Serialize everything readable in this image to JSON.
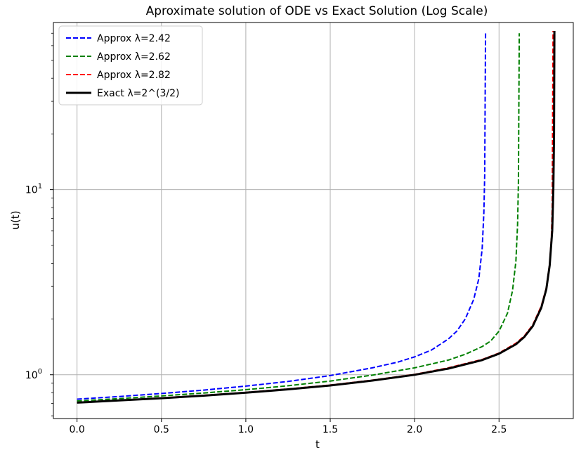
{
  "chart_data": {
    "type": "line",
    "title": "Aproximate solution of ODE vs Exact Solution (Log Scale)",
    "xlabel": "t",
    "ylabel": "u(t)",
    "yscale": "log",
    "xlim": [
      -0.14,
      2.94
    ],
    "ylim": [
      0.58,
      80
    ],
    "grid": true,
    "legend_position": "upper-left",
    "x_ticks": [
      {
        "value": 0.0,
        "label": "0.0"
      },
      {
        "value": 0.5,
        "label": "0.5"
      },
      {
        "value": 1.0,
        "label": "1.0"
      },
      {
        "value": 1.5,
        "label": "1.5"
      },
      {
        "value": 2.0,
        "label": "2.0"
      },
      {
        "value": 2.5,
        "label": "2.5"
      }
    ],
    "y_ticks": [
      {
        "value": 1,
        "base": "10",
        "exp": "0"
      },
      {
        "value": 10,
        "base": "10",
        "exp": "1"
      }
    ],
    "series": [
      {
        "name": "Approx λ=2.42",
        "color": "#0000ff",
        "dashed": true,
        "width": 2,
        "x": [
          0,
          0.25,
          0.5,
          0.75,
          1.0,
          1.25,
          1.5,
          1.75,
          1.9,
          2.0,
          2.1,
          2.2,
          2.25,
          2.3,
          2.35,
          2.38,
          2.4,
          2.41,
          2.415,
          2.42
        ],
        "y": [
          0.738,
          0.763,
          0.792,
          0.826,
          0.868,
          0.92,
          0.99,
          1.09,
          1.17,
          1.25,
          1.36,
          1.56,
          1.72,
          2.0,
          2.55,
          3.3,
          4.8,
          7.5,
          12,
          70
        ]
      },
      {
        "name": "Approx λ=2.62",
        "color": "#008000",
        "dashed": true,
        "width": 2,
        "x": [
          0,
          0.25,
          0.5,
          0.75,
          1.0,
          1.25,
          1.5,
          1.75,
          2.0,
          2.2,
          2.3,
          2.4,
          2.45,
          2.5,
          2.55,
          2.58,
          2.6,
          2.61,
          2.615,
          2.62
        ],
        "y": [
          0.722,
          0.743,
          0.768,
          0.797,
          0.83,
          0.872,
          0.925,
          0.995,
          1.09,
          1.2,
          1.29,
          1.42,
          1.52,
          1.72,
          2.15,
          2.85,
          4.1,
          6.5,
          11,
          70
        ]
      },
      {
        "name": "Approx λ=2.82",
        "color": "#ff0000",
        "dashed": true,
        "width": 2,
        "x": [
          0,
          0.25,
          0.5,
          0.75,
          1.0,
          1.25,
          1.5,
          1.75,
          2.0,
          2.2,
          2.4,
          2.5,
          2.6,
          2.65,
          2.7,
          2.75,
          2.78,
          2.8,
          2.81,
          2.815,
          2.82
        ],
        "y": [
          0.709,
          0.728,
          0.75,
          0.774,
          0.803,
          0.838,
          0.88,
          0.935,
          1.005,
          1.09,
          1.21,
          1.31,
          1.48,
          1.62,
          1.86,
          2.35,
          2.95,
          4.0,
          5.5,
          8,
          72
        ]
      },
      {
        "name": "Exact λ=2^(3/2)",
        "color": "#000000",
        "dashed": false,
        "width": 3,
        "x": [
          0,
          0.25,
          0.5,
          0.75,
          1.0,
          1.25,
          1.5,
          1.75,
          2.0,
          2.2,
          2.4,
          2.5,
          2.6,
          2.65,
          2.7,
          2.75,
          2.78,
          2.8,
          2.815,
          2.822,
          2.826,
          2.828
        ],
        "y": [
          0.707,
          0.726,
          0.747,
          0.771,
          0.8,
          0.834,
          0.875,
          0.93,
          1.0,
          1.08,
          1.2,
          1.3,
          1.46,
          1.6,
          1.83,
          2.3,
          2.9,
          3.9,
          6.0,
          10,
          20,
          72
        ]
      }
    ]
  }
}
